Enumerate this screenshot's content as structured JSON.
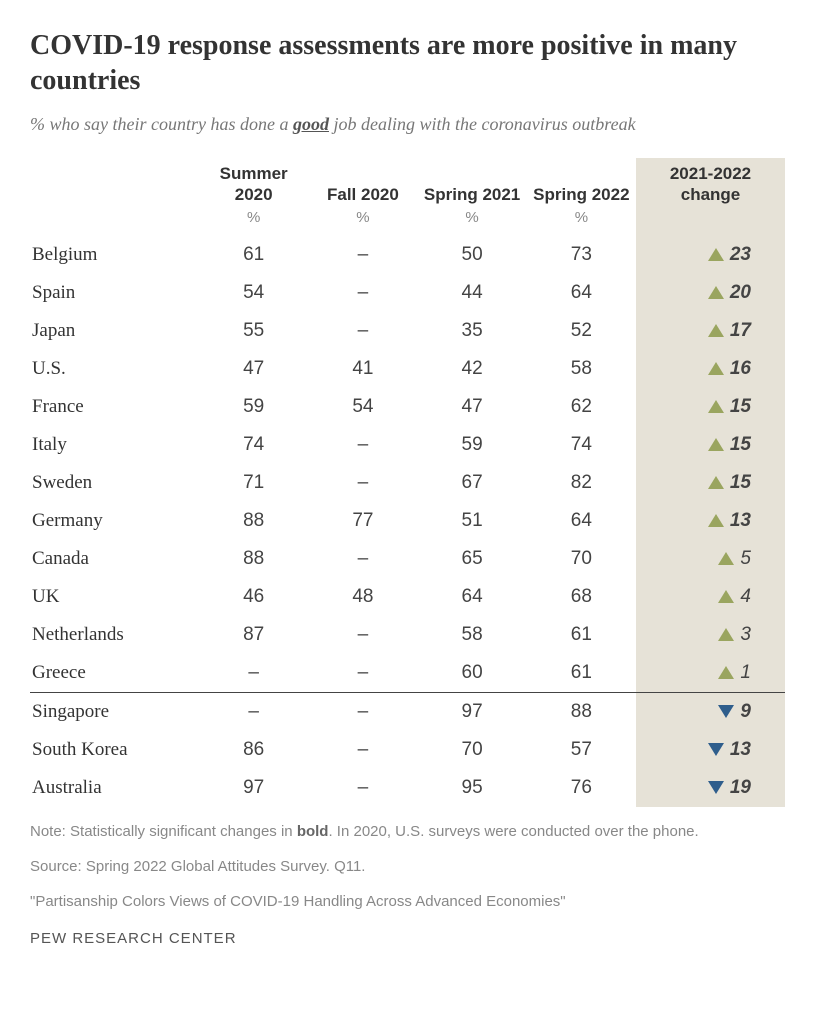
{
  "title": "COVID-19 response assessments are more positive in many countries",
  "subtitle_prefix": "% who say their country has done a ",
  "subtitle_good": "good",
  "subtitle_suffix": " job dealing with the coronavirus outbreak",
  "columns": [
    "Summer 2020",
    "Fall 2020",
    "Spring 2021",
    "Spring 2022",
    "2021-2022 change"
  ],
  "unit_label": "%",
  "colors": {
    "up_triangle": "#9aa55f",
    "down_triangle": "#2f5e8c",
    "change_bg": "#e6e2d7",
    "text": "#333333",
    "muted": "#888888",
    "divider": "#444444"
  },
  "fontsize": {
    "title": 28,
    "subtitle": 18,
    "header": 17,
    "body": 19,
    "foot": 15
  },
  "rows": [
    {
      "country": "Belgium",
      "v": [
        "61",
        "–",
        "50",
        "73"
      ],
      "change": 23,
      "dir": "up",
      "sig": true,
      "divider": false
    },
    {
      "country": "Spain",
      "v": [
        "54",
        "–",
        "44",
        "64"
      ],
      "change": 20,
      "dir": "up",
      "sig": true,
      "divider": false
    },
    {
      "country": "Japan",
      "v": [
        "55",
        "–",
        "35",
        "52"
      ],
      "change": 17,
      "dir": "up",
      "sig": true,
      "divider": false
    },
    {
      "country": "U.S.",
      "v": [
        "47",
        "41",
        "42",
        "58"
      ],
      "change": 16,
      "dir": "up",
      "sig": true,
      "divider": false
    },
    {
      "country": "France",
      "v": [
        "59",
        "54",
        "47",
        "62"
      ],
      "change": 15,
      "dir": "up",
      "sig": true,
      "divider": false
    },
    {
      "country": "Italy",
      "v": [
        "74",
        "–",
        "59",
        "74"
      ],
      "change": 15,
      "dir": "up",
      "sig": true,
      "divider": false
    },
    {
      "country": "Sweden",
      "v": [
        "71",
        "–",
        "67",
        "82"
      ],
      "change": 15,
      "dir": "up",
      "sig": true,
      "divider": false
    },
    {
      "country": "Germany",
      "v": [
        "88",
        "77",
        "51",
        "64"
      ],
      "change": 13,
      "dir": "up",
      "sig": true,
      "divider": false
    },
    {
      "country": "Canada",
      "v": [
        "88",
        "–",
        "65",
        "70"
      ],
      "change": 5,
      "dir": "up",
      "sig": false,
      "divider": false
    },
    {
      "country": "UK",
      "v": [
        "46",
        "48",
        "64",
        "68"
      ],
      "change": 4,
      "dir": "up",
      "sig": false,
      "divider": false
    },
    {
      "country": "Netherlands",
      "v": [
        "87",
        "–",
        "58",
        "61"
      ],
      "change": 3,
      "dir": "up",
      "sig": false,
      "divider": false
    },
    {
      "country": "Greece",
      "v": [
        "–",
        "–",
        "60",
        "61"
      ],
      "change": 1,
      "dir": "up",
      "sig": false,
      "divider": false
    },
    {
      "country": "Singapore",
      "v": [
        "–",
        "–",
        "97",
        "88"
      ],
      "change": 9,
      "dir": "down",
      "sig": true,
      "divider": true
    },
    {
      "country": "South Korea",
      "v": [
        "86",
        "–",
        "70",
        "57"
      ],
      "change": 13,
      "dir": "down",
      "sig": true,
      "divider": false
    },
    {
      "country": "Australia",
      "v": [
        "97",
        "–",
        "95",
        "76"
      ],
      "change": 19,
      "dir": "down",
      "sig": true,
      "divider": false
    }
  ],
  "note_prefix": "Note: Statistically significant changes in ",
  "note_bold": "bold",
  "note_suffix": ". In 2020, U.S. surveys were conducted over the phone.",
  "source": "Source: Spring 2022 Global Attitudes Survey. Q11.",
  "report": "\"Partisanship Colors Views of COVID-19 Handling Across Advanced Economies\"",
  "brand": "PEW RESEARCH CENTER"
}
